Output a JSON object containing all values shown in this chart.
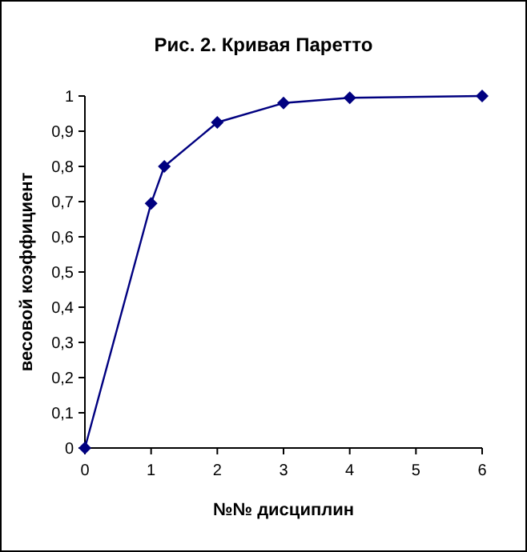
{
  "chart_data": {
    "type": "line",
    "title": "Рис. 2. Кривая Паретто",
    "xlabel": "№№ дисциплин",
    "ylabel": "весовой коэффициент",
    "x": [
      0,
      1,
      1.2,
      2,
      3,
      4,
      6
    ],
    "series": [
      {
        "color": "#000080",
        "values": [
          0,
          0.695,
          0.8,
          0.925,
          0.98,
          0.995,
          1
        ]
      }
    ],
    "xlim": [
      0,
      6
    ],
    "xticks": [
      0,
      1,
      2,
      3,
      4,
      5,
      6
    ],
    "ylim": [
      0,
      1
    ],
    "yticks": [
      0,
      {
        "value": 0.1,
        "label": "0,1"
      },
      {
        "value": 0.2,
        "label": "0,2"
      },
      {
        "value": 0.3,
        "label": "0,3"
      },
      {
        "value": 0.4,
        "label": "0,4"
      },
      {
        "value": 0.5,
        "label": "0,5"
      },
      {
        "value": 0.6,
        "label": "0,6"
      },
      {
        "value": 0.7,
        "label": "0,7"
      },
      {
        "value": 0.8,
        "label": "0,8"
      },
      {
        "value": 0.9,
        "label": "0,9"
      },
      1
    ],
    "grid": false,
    "marker": "diamond",
    "line_style": "solid"
  }
}
